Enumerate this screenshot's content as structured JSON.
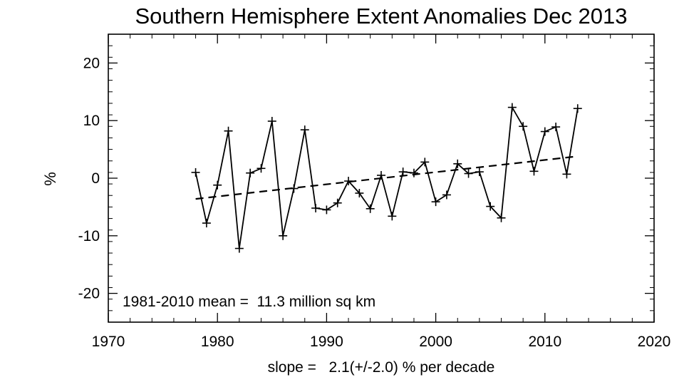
{
  "chart_data": {
    "type": "line",
    "title": "Southern Hemisphere Extent Anomalies Dec 2013",
    "ylabel": "%",
    "xlabel": "",
    "xlim": [
      1970,
      2020
    ],
    "ylim": [
      -25,
      25
    ],
    "x_ticks": [
      1970,
      1980,
      1990,
      2000,
      2010,
      2020
    ],
    "y_ticks": [
      -20,
      -10,
      0,
      10,
      20
    ],
    "x_tick_labels": [
      "1970",
      "1980",
      "1990",
      "2000",
      "2010",
      "2020"
    ],
    "y_tick_labels": [
      "-20",
      "-10",
      "0",
      "10",
      "20"
    ],
    "grid": false,
    "series": [
      {
        "style": "solid-with-plus-markers",
        "x": [
          1978,
          1979,
          1980,
          1981,
          1982,
          1983,
          1984,
          1985,
          1986,
          1987,
          1988,
          1989,
          1990,
          1991,
          1992,
          1993,
          1994,
          1995,
          1996,
          1997,
          1998,
          1999,
          2000,
          2001,
          2002,
          2003,
          2004,
          2005,
          2006,
          2007,
          2008,
          2009,
          2010,
          2011,
          2012,
          2013
        ],
        "y": [
          1.0,
          -7.8,
          -1.2,
          8.2,
          -12.2,
          0.9,
          1.7,
          9.9,
          -10.0,
          -1.8,
          8.4,
          -5.2,
          -5.5,
          -4.3,
          -0.5,
          -2.6,
          -5.3,
          0.5,
          -6.6,
          1.1,
          0.9,
          2.8,
          -4.1,
          -2.9,
          2.5,
          0.8,
          1.1,
          -4.9,
          -6.9,
          12.3,
          9.0,
          1.2,
          8.1,
          8.9,
          0.7,
          12.1
        ]
      },
      {
        "style": "dashed-trend",
        "x": [
          1978,
          2013
        ],
        "y": [
          -3.6,
          3.8
        ]
      }
    ],
    "annotations": {
      "mean": "1981-2010 mean =  11.3 million sq km",
      "slope": "slope =   2.1(+/-2.0) % per decade"
    }
  }
}
